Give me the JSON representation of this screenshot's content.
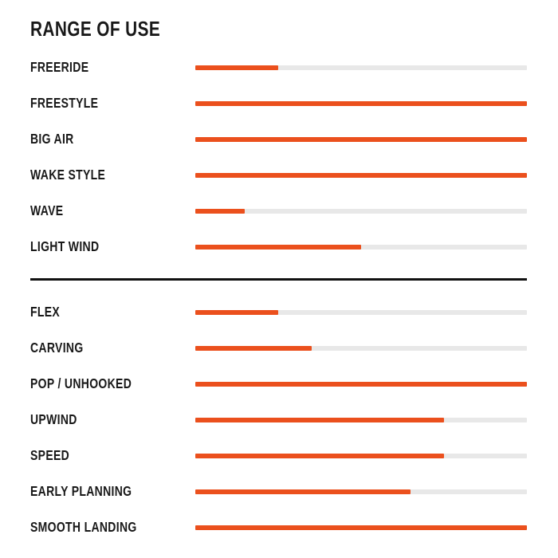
{
  "colors": {
    "accent_orange": "#EB501D",
    "track_gray": "#E8E8E8",
    "text_black": "#191919",
    "divider_black": "#111111",
    "background": "#FFFFFF"
  },
  "chart_data": {
    "type": "bar",
    "orientation": "horizontal",
    "title": "RANGE OF USE",
    "value_unit": "percent_of_scale",
    "max_value": 100,
    "layout": {
      "legend": false,
      "grid": false,
      "axis_labels": false,
      "divider_between_sections": true,
      "bar_color": "#EB501D",
      "track_color": "#E8E8E8"
    },
    "sections": [
      {
        "categories": [
          "FREERIDE",
          "FREESTYLE",
          "BIG AIR",
          "WAKE STYLE",
          "WAVE",
          "LIGHT WIND"
        ],
        "values": [
          25,
          100,
          100,
          100,
          15,
          50
        ]
      },
      {
        "categories": [
          "FLEX",
          "CARVING",
          "POP / UNHOOKED",
          "UPWIND",
          "SPEED",
          "EARLY PLANNING",
          "SMOOTH LANDING"
        ],
        "values": [
          25,
          35,
          100,
          75,
          75,
          65,
          100
        ]
      }
    ]
  }
}
